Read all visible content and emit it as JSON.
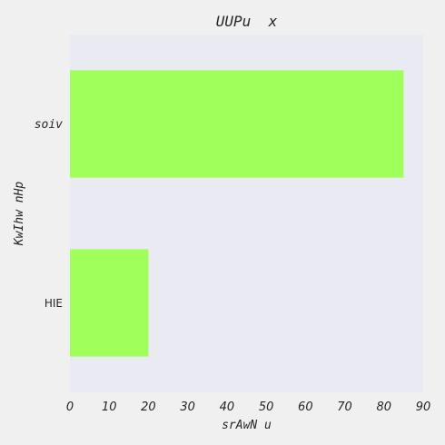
{
  "chart_data": {
    "type": "bar",
    "orientation": "horizontal",
    "title": "UUPu  x",
    "xlabel": "srAwN u",
    "ylabel": "KwIhw nHp",
    "categories": [
      "HIE",
      "soiv"
    ],
    "values": [
      20,
      85
    ],
    "xlim": [
      0,
      90
    ],
    "xticks": [
      0,
      10,
      20,
      30,
      40,
      50,
      60,
      70,
      80,
      90
    ],
    "grid": false,
    "colors": {
      "bar": "#a0ff5a",
      "plot_background": "#eaeaf2",
      "figure_background": "#f0f0f0"
    }
  }
}
